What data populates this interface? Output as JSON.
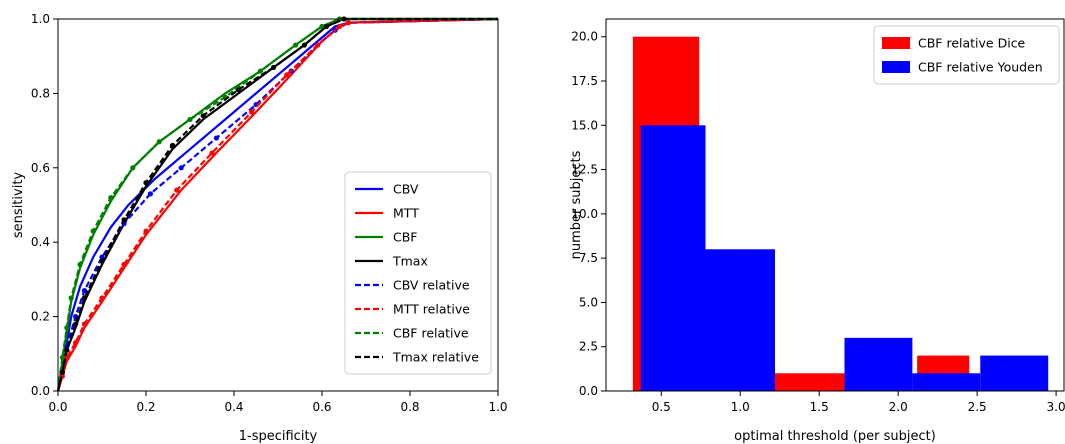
{
  "colors": {
    "cbv": "#0000ff",
    "mtt": "#ff0000",
    "cbf": "#008000",
    "tmax": "#000000",
    "dice": "#ff0000",
    "youden": "#0000ff"
  },
  "chart_data": [
    {
      "type": "line",
      "title": "",
      "xlabel": "1-specificity",
      "ylabel": "sensitivity",
      "xlim": [
        0.0,
        1.0
      ],
      "ylim": [
        0.0,
        1.0
      ],
      "xticks": [
        "0.0",
        "0.2",
        "0.4",
        "0.6",
        "0.8",
        "1.0"
      ],
      "yticks": [
        "0.0",
        "0.2",
        "0.4",
        "0.6",
        "0.8",
        "1.0"
      ],
      "grid": false,
      "legend_position": "bottom-right",
      "series": [
        {
          "name": "CBV",
          "color_key": "cbv",
          "dash": false,
          "x": [
            0.0,
            0.01,
            0.02,
            0.03,
            0.05,
            0.08,
            0.12,
            0.16,
            0.22,
            0.3,
            0.4,
            0.5,
            0.58,
            0.63,
            0.66,
            1.0
          ],
          "y": [
            0.0,
            0.06,
            0.13,
            0.2,
            0.28,
            0.36,
            0.44,
            0.5,
            0.57,
            0.65,
            0.75,
            0.85,
            0.93,
            0.98,
            0.99,
            1.0
          ]
        },
        {
          "name": "MTT",
          "color_key": "mtt",
          "dash": false,
          "x": [
            0.0,
            0.01,
            0.02,
            0.04,
            0.06,
            0.1,
            0.15,
            0.2,
            0.28,
            0.36,
            0.45,
            0.53,
            0.6,
            0.64,
            0.66,
            1.0
          ],
          "y": [
            0.0,
            0.04,
            0.08,
            0.12,
            0.17,
            0.24,
            0.33,
            0.42,
            0.54,
            0.64,
            0.75,
            0.85,
            0.94,
            0.98,
            0.99,
            1.0
          ]
        },
        {
          "name": "CBF",
          "color_key": "cbf",
          "dash": false,
          "x": [
            0.0,
            0.01,
            0.02,
            0.03,
            0.05,
            0.08,
            0.12,
            0.17,
            0.23,
            0.3,
            0.38,
            0.46,
            0.54,
            0.6,
            0.64,
            1.0
          ],
          "y": [
            0.0,
            0.08,
            0.16,
            0.24,
            0.33,
            0.42,
            0.51,
            0.6,
            0.67,
            0.73,
            0.8,
            0.86,
            0.93,
            0.98,
            1.0,
            1.0
          ]
        },
        {
          "name": "Tmax",
          "color_key": "tmax",
          "dash": false,
          "x": [
            0.0,
            0.01,
            0.02,
            0.04,
            0.06,
            0.1,
            0.15,
            0.2,
            0.26,
            0.33,
            0.41,
            0.49,
            0.56,
            0.61,
            0.65,
            1.0
          ],
          "y": [
            0.0,
            0.05,
            0.11,
            0.17,
            0.24,
            0.34,
            0.45,
            0.55,
            0.65,
            0.73,
            0.8,
            0.87,
            0.93,
            0.98,
            1.0,
            1.0
          ]
        },
        {
          "name": "CBV relative",
          "color_key": "cbv",
          "dash": true,
          "x": [
            0.0,
            0.01,
            0.02,
            0.04,
            0.06,
            0.1,
            0.15,
            0.21,
            0.28,
            0.36,
            0.45,
            0.53,
            0.59,
            0.63,
            0.66,
            1.0
          ],
          "y": [
            0.0,
            0.05,
            0.12,
            0.2,
            0.27,
            0.36,
            0.45,
            0.53,
            0.6,
            0.68,
            0.77,
            0.86,
            0.93,
            0.97,
            0.99,
            1.0
          ]
        },
        {
          "name": "MTT relative",
          "color_key": "mtt",
          "dash": true,
          "x": [
            0.0,
            0.01,
            0.02,
            0.04,
            0.06,
            0.1,
            0.15,
            0.2,
            0.27,
            0.35,
            0.44,
            0.52,
            0.59,
            0.64,
            0.66,
            1.0
          ],
          "y": [
            0.0,
            0.04,
            0.09,
            0.13,
            0.18,
            0.25,
            0.34,
            0.43,
            0.54,
            0.64,
            0.75,
            0.85,
            0.93,
            0.98,
            0.99,
            1.0
          ]
        },
        {
          "name": "CBF relative",
          "color_key": "cbf",
          "dash": true,
          "x": [
            0.0,
            0.01,
            0.02,
            0.03,
            0.05,
            0.08,
            0.12,
            0.17,
            0.23,
            0.3,
            0.38,
            0.46,
            0.54,
            0.6,
            0.64,
            1.0
          ],
          "y": [
            0.0,
            0.09,
            0.17,
            0.25,
            0.34,
            0.43,
            0.52,
            0.6,
            0.67,
            0.73,
            0.79,
            0.86,
            0.93,
            0.98,
            1.0,
            1.0
          ]
        },
        {
          "name": "Tmax relative",
          "color_key": "tmax",
          "dash": true,
          "x": [
            0.0,
            0.01,
            0.02,
            0.04,
            0.06,
            0.1,
            0.15,
            0.2,
            0.26,
            0.33,
            0.41,
            0.49,
            0.56,
            0.61,
            0.65,
            1.0
          ],
          "y": [
            0.0,
            0.05,
            0.11,
            0.18,
            0.25,
            0.35,
            0.46,
            0.56,
            0.66,
            0.74,
            0.81,
            0.87,
            0.93,
            0.98,
            1.0,
            1.0
          ]
        }
      ]
    },
    {
      "type": "bar",
      "title": "",
      "xlabel": "optimal threshold (per subject)",
      "ylabel": "number subjects",
      "xlim": [
        0.15,
        3.05
      ],
      "ylim": [
        0.0,
        21.0
      ],
      "xticks": [
        "0.5",
        "1.0",
        "1.5",
        "2.0",
        "2.5",
        "3.0"
      ],
      "yticks": [
        "0.0",
        "2.5",
        "5.0",
        "7.5",
        "10.0",
        "12.5",
        "15.0",
        "17.5",
        "20.0"
      ],
      "grid": false,
      "legend_position": "top-right",
      "series": [
        {
          "name": "CBF relative Dice",
          "color_key": "dice",
          "bins": [
            [
              0.32,
              0.74
            ],
            [
              0.74,
              1.2
            ],
            [
              1.2,
              1.66
            ],
            [
              1.66,
              2.12
            ],
            [
              2.12,
              2.45
            ]
          ],
          "values": [
            20,
            0,
            1,
            0,
            2
          ]
        },
        {
          "name": "CBF relative Youden",
          "color_key": "youden",
          "bins": [
            [
              0.37,
              0.78
            ],
            [
              0.78,
              1.22
            ],
            [
              1.22,
              1.66
            ],
            [
              1.66,
              2.09
            ],
            [
              2.09,
              2.52
            ],
            [
              2.52,
              2.95
            ]
          ],
          "values": [
            15,
            8,
            0,
            3,
            1,
            2
          ]
        }
      ]
    }
  ]
}
